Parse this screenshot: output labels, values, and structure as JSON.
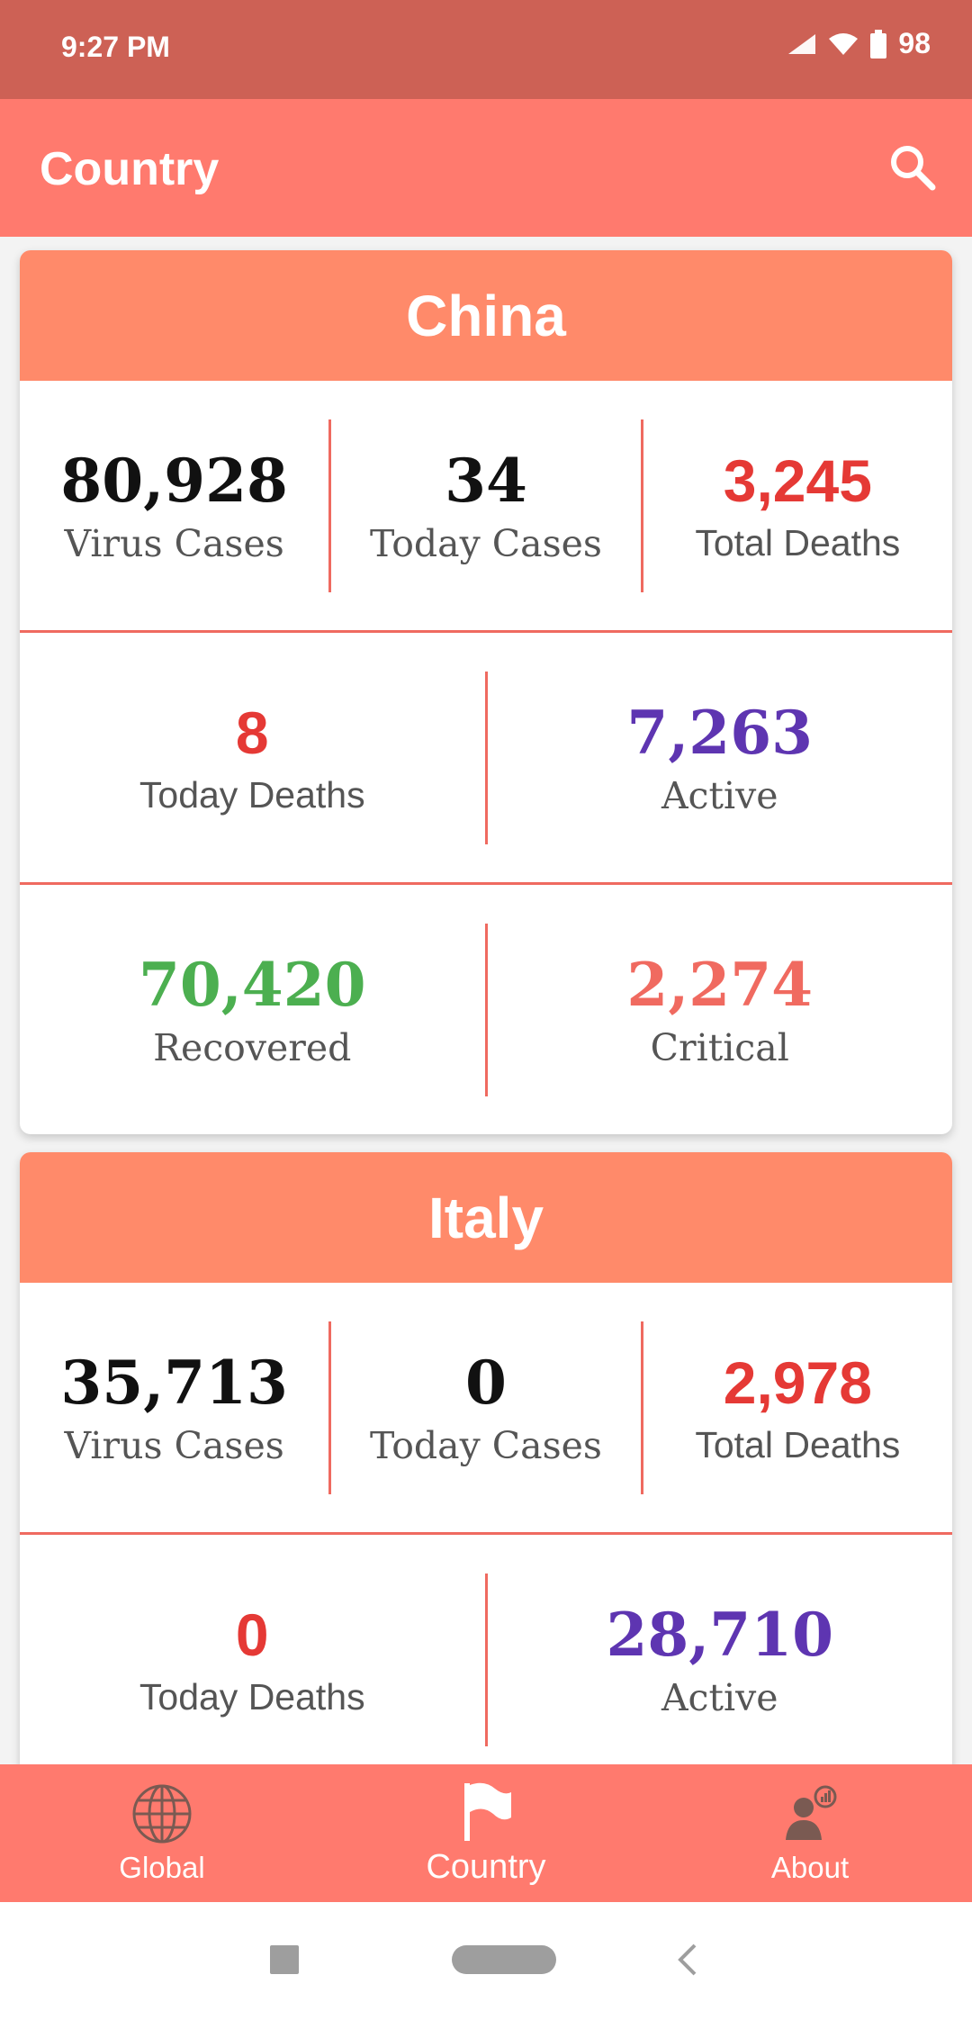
{
  "status": {
    "time": "9:27 PM",
    "battery": "98"
  },
  "appbar": {
    "title": "Country",
    "search_icon": "search-icon"
  },
  "countries": [
    {
      "name": "China",
      "virus_cases": "80,928",
      "virus_cases_label": "Virus Cases",
      "today_cases": "34",
      "today_cases_label": "Today Cases",
      "total_deaths": "3,245",
      "total_deaths_label": "Total Deaths",
      "today_deaths": "8",
      "today_deaths_label": "Today Deaths",
      "active": "7,263",
      "active_label": "Active",
      "recovered": "70,420",
      "recovered_label": "Recovered",
      "critical": "2,274",
      "critical_label": "Critical"
    },
    {
      "name": "Italy",
      "virus_cases": "35,713",
      "virus_cases_label": "Virus Cases",
      "today_cases": "0",
      "today_cases_label": "Today Cases",
      "total_deaths": "2,978",
      "total_deaths_label": "Total Deaths",
      "today_deaths": "0",
      "today_deaths_label": "Today Deaths",
      "active": "28,710",
      "active_label": "Active"
    }
  ],
  "nav": {
    "global": "Global",
    "country": "Country",
    "about": "About"
  },
  "colors": {
    "deaths": "#e53935",
    "active": "#5e35b1",
    "recovered": "#4caf50",
    "critical": "#f06a60",
    "default": "#111111",
    "accent": "#ff7a6e"
  }
}
